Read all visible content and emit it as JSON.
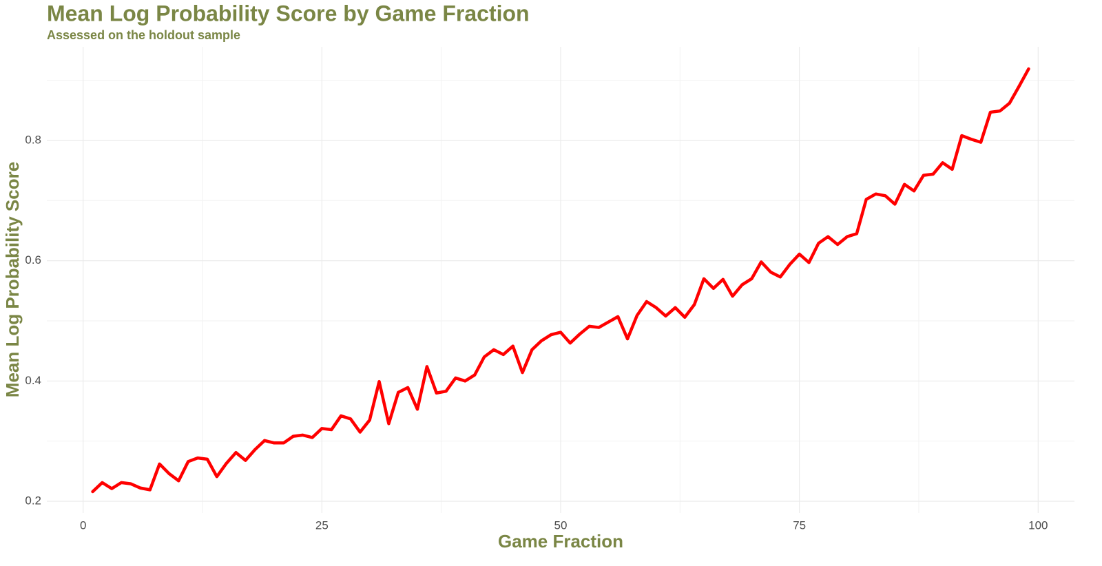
{
  "chart_data": {
    "type": "line",
    "title": "Mean Log Probability Score by Game Fraction",
    "subtitle": "Assessed on the holdout sample",
    "x_label": "Game Fraction",
    "y_label": "Mean Log Probability Score",
    "x": [
      1,
      2,
      3,
      4,
      5,
      6,
      7,
      8,
      9,
      10,
      11,
      12,
      13,
      14,
      15,
      16,
      17,
      18,
      19,
      20,
      21,
      22,
      23,
      24,
      25,
      26,
      27,
      28,
      29,
      30,
      31,
      32,
      33,
      34,
      35,
      36,
      37,
      38,
      39,
      40,
      41,
      42,
      43,
      44,
      45,
      46,
      47,
      48,
      49,
      50,
      51,
      52,
      53,
      54,
      55,
      56,
      57,
      58,
      59,
      60,
      61,
      62,
      63,
      64,
      65,
      66,
      67,
      68,
      69,
      70,
      71,
      72,
      73,
      74,
      75,
      76,
      77,
      78,
      79,
      80,
      81,
      82,
      83,
      84,
      85,
      86,
      87,
      88,
      89,
      90,
      91,
      92,
      93,
      94,
      95,
      96,
      97,
      98,
      99
    ],
    "values": [
      0.216,
      0.231,
      0.221,
      0.231,
      0.229,
      0.222,
      0.219,
      0.262,
      0.246,
      0.234,
      0.266,
      0.272,
      0.27,
      0.241,
      0.263,
      0.281,
      0.268,
      0.286,
      0.301,
      0.297,
      0.297,
      0.308,
      0.31,
      0.306,
      0.321,
      0.319,
      0.342,
      0.337,
      0.315,
      0.335,
      0.399,
      0.329,
      0.381,
      0.389,
      0.353,
      0.424,
      0.38,
      0.383,
      0.405,
      0.4,
      0.41,
      0.44,
      0.452,
      0.444,
      0.458,
      0.414,
      0.452,
      0.467,
      0.477,
      0.481,
      0.463,
      0.478,
      0.491,
      0.489,
      0.498,
      0.507,
      0.47,
      0.509,
      0.532,
      0.522,
      0.508,
      0.522,
      0.506,
      0.527,
      0.57,
      0.554,
      0.569,
      0.541,
      0.56,
      0.57,
      0.598,
      0.581,
      0.573,
      0.594,
      0.611,
      0.597,
      0.629,
      0.64,
      0.627,
      0.64,
      0.645,
      0.702,
      0.711,
      0.708,
      0.694,
      0.727,
      0.716,
      0.742,
      0.744,
      0.763,
      0.752,
      0.808,
      0.802,
      0.797,
      0.847,
      0.849,
      0.862,
      0.89,
      0.919
    ],
    "color": "#ff0000",
    "xlim": [
      -3.8,
      103.8
    ],
    "ylim": [
      0.1805,
      0.9557
    ],
    "xticks": [
      0,
      25,
      50,
      75,
      100
    ],
    "yticks": [
      0.2,
      0.4,
      0.6,
      0.8
    ],
    "xminor": [
      12.5,
      37.5,
      62.5,
      87.5
    ],
    "yminor": [
      0.3,
      0.5,
      0.7,
      0.9
    ],
    "grid": true
  }
}
